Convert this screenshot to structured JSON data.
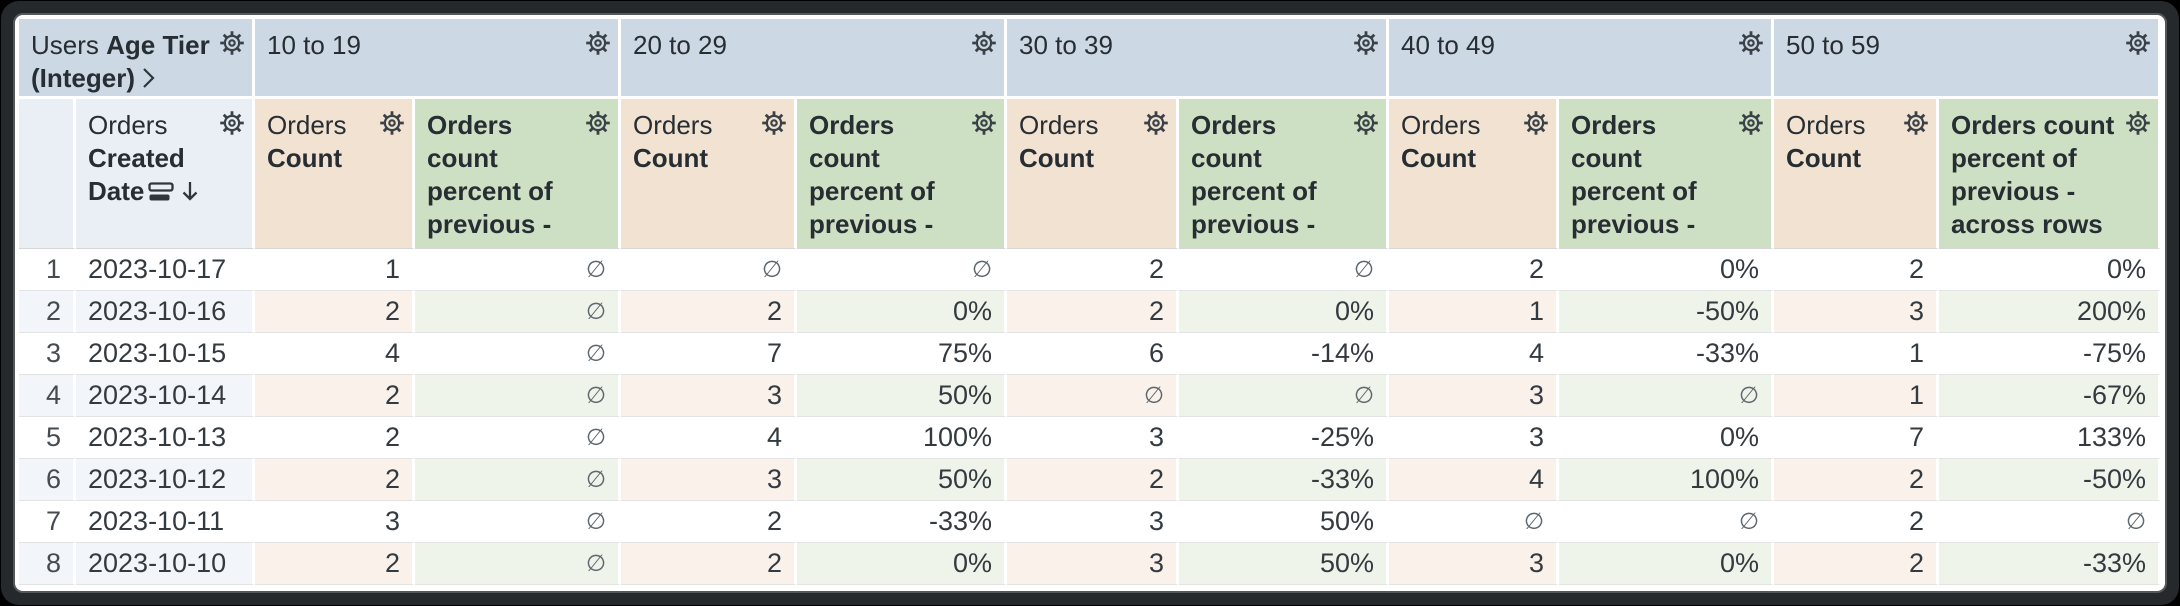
{
  "corner": {
    "view": "Users",
    "field": "Age Tier",
    "type": "(Integer)"
  },
  "pivots": [
    "10 to 19",
    "20 to 29",
    "30 to 39",
    "40 to 49",
    "50 to 59"
  ],
  "dim": {
    "view": "Orders",
    "field": "Created Date"
  },
  "measure_count": {
    "view": "Orders",
    "field": "Count"
  },
  "measure_pct": {
    "label": "Orders count percent of previous - across rows"
  },
  "null_symbol": "∅",
  "icons": {
    "gear": "gear-icon",
    "chevron": "chevron-right-icon",
    "sort": "sort-descending-arrow-icon",
    "rows": "table-rows-icon"
  },
  "colors": {
    "pivot_header_bg": "#ccd8e4",
    "dim_header_bg": "#e9eff5",
    "count_header_bg": "#f2e2d2",
    "pct_header_bg": "#cde0c3",
    "stripe_dim": "#f2f5f9",
    "stripe_count": "#faf1eb",
    "stripe_pct": "#eef4ea"
  },
  "rows": [
    {
      "n": "1",
      "date": "2023-10-17",
      "v": [
        "1",
        "∅",
        "∅",
        "∅",
        "2",
        "∅",
        "2",
        "0%",
        "2",
        "0%"
      ]
    },
    {
      "n": "2",
      "date": "2023-10-16",
      "v": [
        "2",
        "∅",
        "2",
        "0%",
        "2",
        "0%",
        "1",
        "-50%",
        "3",
        "200%"
      ]
    },
    {
      "n": "3",
      "date": "2023-10-15",
      "v": [
        "4",
        "∅",
        "7",
        "75%",
        "6",
        "-14%",
        "4",
        "-33%",
        "1",
        "-75%"
      ]
    },
    {
      "n": "4",
      "date": "2023-10-14",
      "v": [
        "2",
        "∅",
        "3",
        "50%",
        "∅",
        "∅",
        "3",
        "∅",
        "1",
        "-67%"
      ]
    },
    {
      "n": "5",
      "date": "2023-10-13",
      "v": [
        "2",
        "∅",
        "4",
        "100%",
        "3",
        "-25%",
        "3",
        "0%",
        "7",
        "133%"
      ]
    },
    {
      "n": "6",
      "date": "2023-10-12",
      "v": [
        "2",
        "∅",
        "3",
        "50%",
        "2",
        "-33%",
        "4",
        "100%",
        "2",
        "-50%"
      ]
    },
    {
      "n": "7",
      "date": "2023-10-11",
      "v": [
        "3",
        "∅",
        "2",
        "-33%",
        "3",
        "50%",
        "∅",
        "∅",
        "2",
        "∅"
      ]
    },
    {
      "n": "8",
      "date": "2023-10-10",
      "v": [
        "2",
        "∅",
        "2",
        "0%",
        "3",
        "50%",
        "3",
        "0%",
        "2",
        "-33%"
      ]
    }
  ]
}
